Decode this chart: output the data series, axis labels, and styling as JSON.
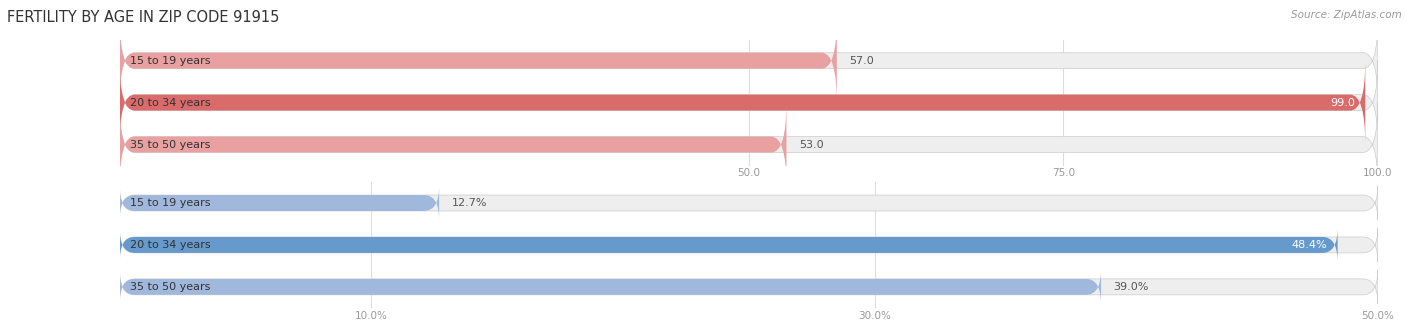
{
  "title": "FERTILITY BY AGE IN ZIP CODE 91915",
  "source": "Source: ZipAtlas.com",
  "top_chart": {
    "categories": [
      "15 to 19 years",
      "20 to 34 years",
      "35 to 50 years"
    ],
    "values": [
      57.0,
      99.0,
      53.0
    ],
    "bar_color_light": "#e8a0a0",
    "bar_color_dark": "#d96b6b",
    "xlim": [
      0,
      100
    ],
    "xticks": [
      50.0,
      75.0,
      100.0
    ],
    "xtick_labels": [
      "50.0",
      "75.0",
      "100.0"
    ]
  },
  "bottom_chart": {
    "categories": [
      "15 to 19 years",
      "20 to 34 years",
      "35 to 50 years"
    ],
    "values": [
      12.7,
      48.4,
      39.0
    ],
    "bar_color_light": "#a0b8dc",
    "bar_color_dark": "#6699cc",
    "xlim": [
      0,
      50
    ],
    "xticks": [
      10.0,
      30.0,
      50.0
    ],
    "xtick_labels": [
      "10.0%",
      "30.0%",
      "50.0%"
    ]
  },
  "title_color": "#333333",
  "tick_color": "#999999",
  "title_fontsize": 10.5,
  "label_fontsize": 8.0,
  "tick_fontsize": 7.5,
  "source_fontsize": 7.5
}
